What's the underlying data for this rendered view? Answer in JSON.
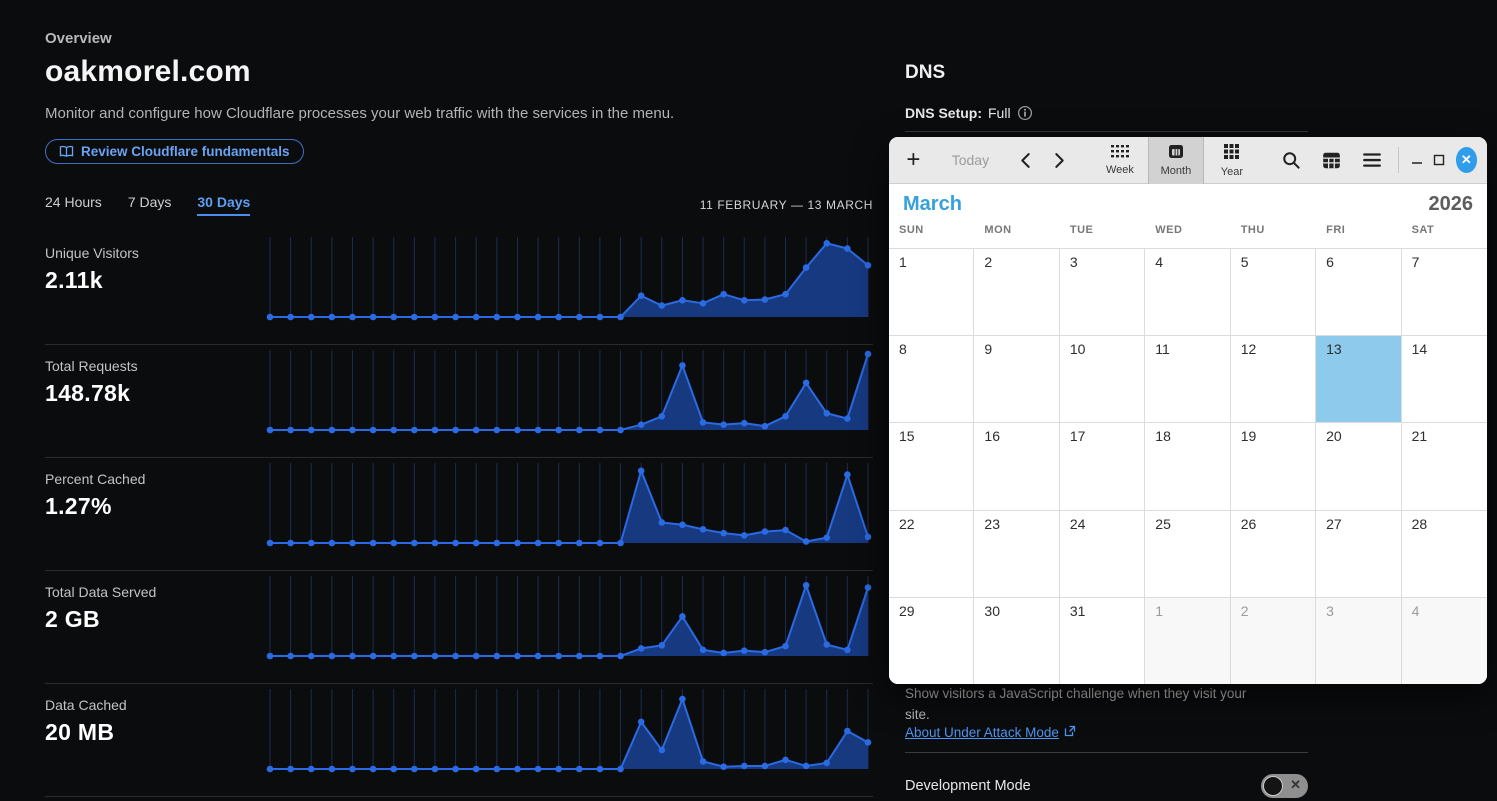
{
  "overview": {
    "eyebrow": "Overview",
    "domain": "oakmorel.com",
    "description": "Monitor and configure how Cloudflare processes your web traffic with the services in the menu.",
    "review_button_label": "Review Cloudflare fundamentals"
  },
  "analytics": {
    "tabs": [
      "24 Hours",
      "7 Days",
      "30 Days"
    ],
    "active_tab": "30 Days",
    "date_range": "11 FEBRUARY — 13 MARCH",
    "metrics": [
      {
        "label": "Unique Visitors",
        "value": "2.11k"
      },
      {
        "label": "Total Requests",
        "value": "148.78k"
      },
      {
        "label": "Percent Cached",
        "value": "1.27%"
      },
      {
        "label": "Total Data Served",
        "value": "2 GB"
      },
      {
        "label": "Data Cached",
        "value": "20 MB"
      }
    ]
  },
  "chart_data": [
    {
      "type": "area",
      "title": "Unique Visitors",
      "total": "2.11k",
      "x_range": "11 February – 13 March (30 days)",
      "ylim": [
        0,
        100
      ],
      "unit": "relative height %",
      "values": [
        0,
        0,
        0,
        0,
        0,
        0,
        0,
        0,
        0,
        0,
        0,
        0,
        0,
        0,
        0,
        0,
        0,
        0,
        28,
        15,
        22,
        18,
        30,
        22,
        23,
        30,
        65,
        97,
        90,
        68
      ]
    },
    {
      "type": "area",
      "title": "Total Requests",
      "total": "148.78k",
      "x_range": "11 February – 13 March (30 days)",
      "ylim": [
        0,
        100
      ],
      "unit": "relative height %",
      "values": [
        0,
        0,
        0,
        0,
        0,
        0,
        0,
        0,
        0,
        0,
        0,
        0,
        0,
        0,
        0,
        0,
        0,
        0,
        7,
        18,
        85,
        10,
        7,
        9,
        5,
        18,
        62,
        22,
        15,
        100
      ]
    },
    {
      "type": "area",
      "title": "Percent Cached",
      "total": "1.27%",
      "x_range": "11 February – 13 March (30 days)",
      "ylim": [
        0,
        100
      ],
      "unit": "relative height %",
      "values": [
        0,
        0,
        0,
        0,
        0,
        0,
        0,
        0,
        0,
        0,
        0,
        0,
        0,
        0,
        0,
        0,
        0,
        0,
        95,
        27,
        24,
        18,
        13,
        10,
        15,
        17,
        2,
        7,
        90,
        8
      ]
    },
    {
      "type": "area",
      "title": "Total Data Served",
      "total": "2 GB",
      "x_range": "11 February – 13 March (30 days)",
      "ylim": [
        0,
        100
      ],
      "unit": "relative height %",
      "values": [
        0,
        0,
        0,
        0,
        0,
        0,
        0,
        0,
        0,
        0,
        0,
        0,
        0,
        0,
        0,
        0,
        0,
        0,
        10,
        14,
        52,
        8,
        4,
        7,
        5,
        13,
        93,
        15,
        8,
        90
      ]
    },
    {
      "type": "area",
      "title": "Data Cached",
      "total": "20 MB",
      "x_range": "11 February – 13 March (30 days)",
      "ylim": [
        0,
        100
      ],
      "unit": "relative height %",
      "values": [
        0,
        0,
        0,
        0,
        0,
        0,
        0,
        0,
        0,
        0,
        0,
        0,
        0,
        0,
        0,
        0,
        0,
        0,
        62,
        25,
        92,
        10,
        3,
        4,
        4,
        12,
        4,
        8,
        50,
        35
      ]
    }
  ],
  "dns": {
    "title": "DNS",
    "setup_label": "DNS Setup:",
    "setup_value": "Full"
  },
  "security": {
    "challenge_text": "Show visitors a JavaScript challenge when they visit your site.",
    "attack_link": "About Under Attack Mode",
    "devmode_label": "Development Mode"
  },
  "calendar": {
    "toolbar": {
      "today": "Today",
      "views": [
        {
          "label": "Week"
        },
        {
          "label": "Month"
        },
        {
          "label": "Year"
        }
      ],
      "active_view": "Month"
    },
    "month": "March",
    "year": "2026",
    "weekdays": [
      "SUN",
      "MON",
      "TUE",
      "WED",
      "THU",
      "FRI",
      "SAT"
    ],
    "days_in_month": 31,
    "start_col": 0,
    "selected_day": 13,
    "next_month_days": [
      1,
      2,
      3,
      4
    ]
  },
  "colors": {
    "accent_blue": "#4e94f0",
    "chart_line": "#2a6ae3",
    "chart_fill": "#16397f",
    "chart_grid": "#1b2c52",
    "calendar_month": "#35a1dc",
    "selected_day_bg": "#8ecaec",
    "close_button": "#2f9de9"
  }
}
